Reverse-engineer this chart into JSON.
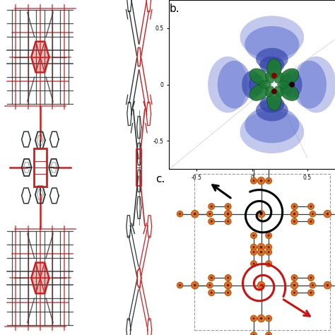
{
  "fig_width": 4.74,
  "fig_height": 4.74,
  "dpi": 100,
  "bg_color": "#ffffff",
  "label_b": "b.",
  "label_c": "c.",
  "blue_dark": "#3344aa",
  "blue_light": "#5566cc",
  "blue_alpha1": 0.65,
  "blue_alpha2": 0.45,
  "green_color": "#1a7a30",
  "green_dark": "#0a4418",
  "red_color": "#cc1111",
  "dark_mol": "#2a3535",
  "red_mol": "#cc2020",
  "orange_node": "#e07030",
  "orange_edge": "#bb5500",
  "teal_link": "#2a4040",
  "spiral_black": "#000000",
  "spiral_red": "#cc1111",
  "gray_dash": "#999999",
  "gray_axis": "#555555"
}
